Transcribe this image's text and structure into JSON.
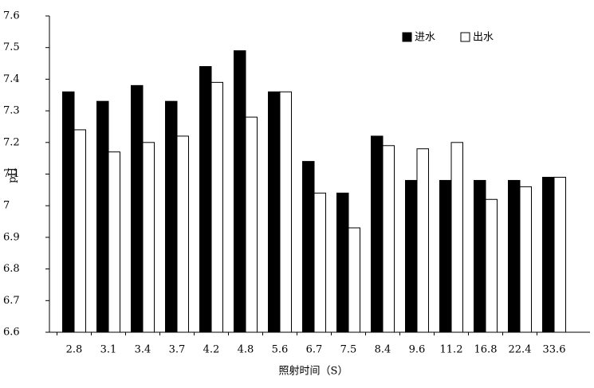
{
  "chart_data": {
    "type": "bar",
    "x_label": "照射时间（S）",
    "y_label": "pH",
    "categories": [
      "2.8",
      "3.1",
      "3.4",
      "3.7",
      "4.2",
      "4.8",
      "5.6",
      "6.7",
      "7.5",
      "8.4",
      "9.6",
      "11.2",
      "16.8",
      "22.4",
      "33.6"
    ],
    "series": [
      {
        "name": "进水",
        "color": "#000000",
        "values": [
          7.36,
          7.33,
          7.38,
          7.33,
          7.44,
          7.49,
          7.36,
          7.14,
          7.04,
          7.22,
          7.08,
          7.08,
          7.08,
          7.08,
          7.09
        ]
      },
      {
        "name": "出水",
        "color": "#ffffff",
        "values": [
          7.24,
          7.17,
          7.2,
          7.22,
          7.39,
          7.28,
          7.36,
          7.04,
          6.93,
          7.19,
          7.18,
          7.2,
          7.02,
          7.06,
          7.09
        ]
      }
    ],
    "ylim": [
      6.6,
      7.6
    ],
    "yticks": [
      6.6,
      6.7,
      6.8,
      6.9,
      7,
      7.1,
      7.2,
      7.3,
      7.4,
      7.5,
      7.6
    ],
    "legend": "upper-right"
  }
}
